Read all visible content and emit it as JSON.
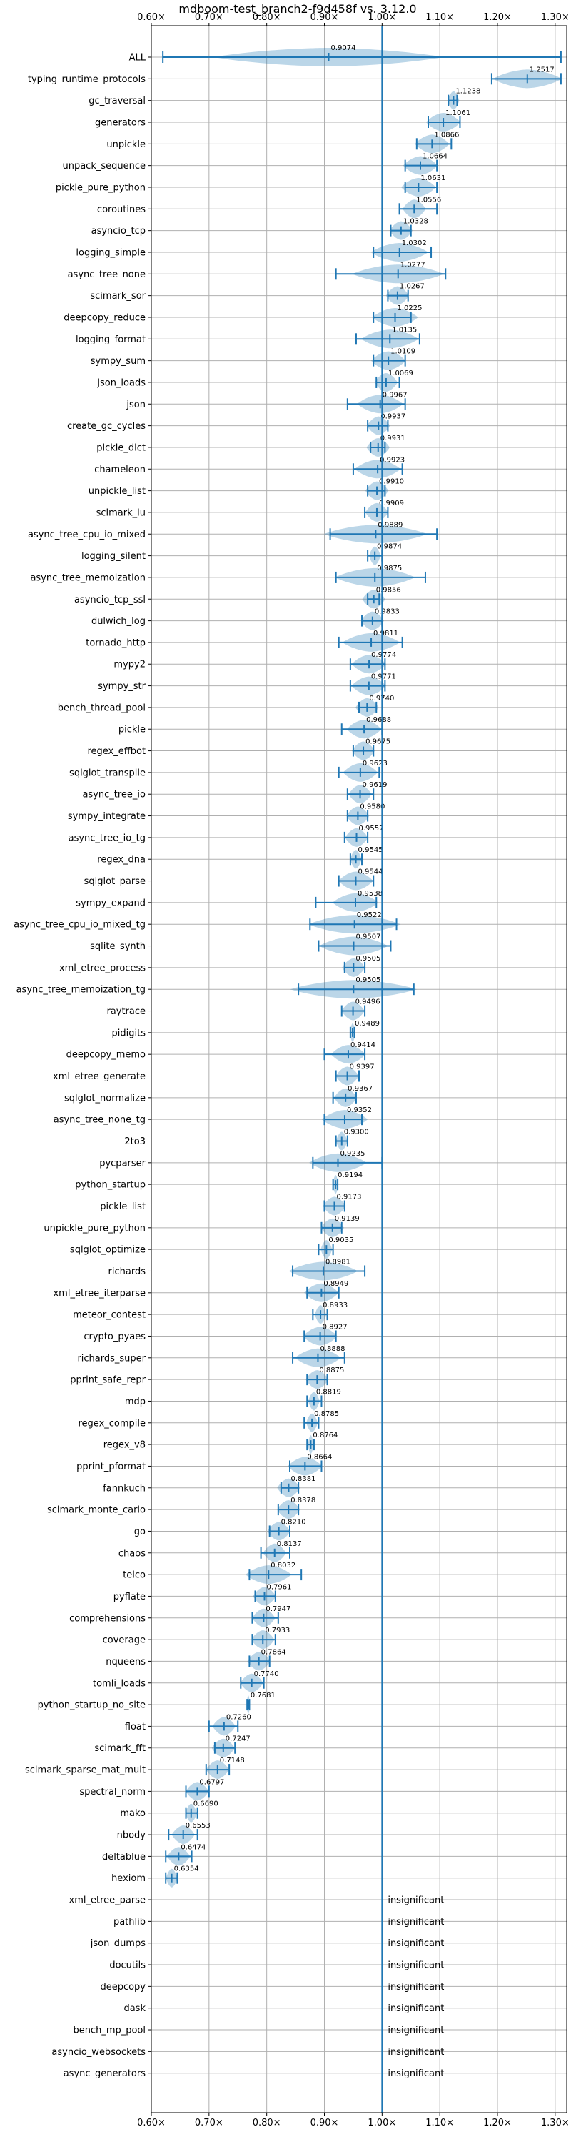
{
  "chart_data": {
    "type": "violin",
    "title": "mdboom-test_branch2-f9d458f vs. 3.12.0",
    "xlim": [
      0.6,
      1.32
    ],
    "grid": "on",
    "reference_x": 1.0,
    "x_ticks": [
      0.6,
      0.7,
      0.8,
      0.9,
      1.0,
      1.1,
      1.2,
      1.3
    ],
    "x_tick_labels": [
      "0.60×",
      "0.70×",
      "0.80×",
      "0.90×",
      "1.00×",
      "1.10×",
      "1.20×",
      "1.30×"
    ],
    "insignificant_text": "insignificant",
    "benchmarks": [
      {
        "name": "ALL",
        "median": 0.9074,
        "label": "0.9074",
        "min": 0.62,
        "max": 1.31,
        "spread": 0.2
      },
      {
        "name": "typing_runtime_protocols",
        "median": 1.2517,
        "label": "1.2517",
        "min": 1.19,
        "max": 1.31,
        "spread": 0.06
      },
      {
        "name": "gc_traversal",
        "median": 1.1238,
        "label": "1.1238",
        "min": 1.115,
        "max": 1.13,
        "spread": 0.01
      },
      {
        "name": "generators",
        "median": 1.1061,
        "label": "1.1061",
        "min": 1.08,
        "max": 1.135,
        "spread": 0.03
      },
      {
        "name": "unpickle",
        "median": 1.0866,
        "label": "1.0866",
        "min": 1.06,
        "max": 1.12,
        "spread": 0.03
      },
      {
        "name": "unpack_sequence",
        "median": 1.0664,
        "label": "1.0664",
        "min": 1.04,
        "max": 1.095,
        "spread": 0.03
      },
      {
        "name": "pickle_pure_python",
        "median": 1.0631,
        "label": "1.0631",
        "min": 1.04,
        "max": 1.095,
        "spread": 0.03
      },
      {
        "name": "coroutines",
        "median": 1.0556,
        "label": "1.0556",
        "min": 1.03,
        "max": 1.095,
        "spread": 0.02
      },
      {
        "name": "asyncio_tcp",
        "median": 1.0328,
        "label": "1.0328",
        "min": 1.015,
        "max": 1.05,
        "spread": 0.02
      },
      {
        "name": "logging_simple",
        "median": 1.0302,
        "label": "1.0302",
        "min": 0.985,
        "max": 1.085,
        "spread": 0.05
      },
      {
        "name": "async_tree_none",
        "median": 1.0277,
        "label": "1.0277",
        "min": 0.92,
        "max": 1.11,
        "spread": 0.08
      },
      {
        "name": "scimark_sor",
        "median": 1.0267,
        "label": "1.0267",
        "min": 1.01,
        "max": 1.045,
        "spread": 0.02
      },
      {
        "name": "deepcopy_reduce",
        "median": 1.0225,
        "label": "1.0225",
        "min": 0.985,
        "max": 1.05,
        "spread": 0.04
      },
      {
        "name": "logging_format",
        "median": 1.0135,
        "label": "1.0135",
        "min": 0.955,
        "max": 1.065,
        "spread": 0.05
      },
      {
        "name": "sympy_sum",
        "median": 1.0109,
        "label": "1.0109",
        "min": 0.985,
        "max": 1.04,
        "spread": 0.03
      },
      {
        "name": "json_loads",
        "median": 1.0069,
        "label": "1.0069",
        "min": 0.99,
        "max": 1.03,
        "spread": 0.02
      },
      {
        "name": "json",
        "median": 0.9967,
        "label": "0.9967",
        "min": 0.94,
        "max": 1.04,
        "spread": 0.04
      },
      {
        "name": "create_gc_cycles",
        "median": 0.9937,
        "label": "0.9937",
        "min": 0.975,
        "max": 1.01,
        "spread": 0.02
      },
      {
        "name": "pickle_dict",
        "median": 0.9931,
        "label": "0.9931",
        "min": 0.98,
        "max": 1.005,
        "spread": 0.02
      },
      {
        "name": "chameleon",
        "median": 0.9923,
        "label": "0.9923",
        "min": 0.95,
        "max": 1.035,
        "spread": 0.04
      },
      {
        "name": "unpickle_list",
        "median": 0.991,
        "label": "0.9910",
        "min": 0.975,
        "max": 1.005,
        "spread": 0.02
      },
      {
        "name": "scimark_lu",
        "median": 0.9909,
        "label": "0.9909",
        "min": 0.97,
        "max": 1.01,
        "spread": 0.02
      },
      {
        "name": "async_tree_cpu_io_mixed",
        "median": 0.9889,
        "label": "0.9889",
        "min": 0.91,
        "max": 1.095,
        "spread": 0.09
      },
      {
        "name": "logging_silent",
        "median": 0.9874,
        "label": "0.9874",
        "min": 0.975,
        "max": 1.0,
        "spread": 0.01
      },
      {
        "name": "async_tree_memoization",
        "median": 0.9875,
        "label": "0.9875",
        "min": 0.92,
        "max": 1.075,
        "spread": 0.07
      },
      {
        "name": "asyncio_tcp_ssl",
        "median": 0.9856,
        "label": "0.9856",
        "min": 0.975,
        "max": 0.995,
        "spread": 0.02
      },
      {
        "name": "dulwich_log",
        "median": 0.9833,
        "label": "0.9833",
        "min": 0.965,
        "max": 1.0,
        "spread": 0.02
      },
      {
        "name": "tornado_http",
        "median": 0.9811,
        "label": "0.9811",
        "min": 0.925,
        "max": 1.035,
        "spread": 0.05
      },
      {
        "name": "mypy2",
        "median": 0.9774,
        "label": "0.9774",
        "min": 0.945,
        "max": 1.005,
        "spread": 0.03
      },
      {
        "name": "sympy_str",
        "median": 0.9771,
        "label": "0.9771",
        "min": 0.945,
        "max": 1.005,
        "spread": 0.03
      },
      {
        "name": "bench_thread_pool",
        "median": 0.974,
        "label": "0.9740",
        "min": 0.96,
        "max": 0.99,
        "spread": 0.02
      },
      {
        "name": "pickle",
        "median": 0.9688,
        "label": "0.9688",
        "min": 0.93,
        "max": 1.0,
        "spread": 0.03
      },
      {
        "name": "regex_effbot",
        "median": 0.9675,
        "label": "0.9675",
        "min": 0.95,
        "max": 0.985,
        "spread": 0.02
      },
      {
        "name": "sqlglot_transpile",
        "median": 0.9623,
        "label": "0.9623",
        "min": 0.925,
        "max": 0.995,
        "spread": 0.03
      },
      {
        "name": "async_tree_io",
        "median": 0.9619,
        "label": "0.9619",
        "min": 0.94,
        "max": 0.985,
        "spread": 0.02
      },
      {
        "name": "sympy_integrate",
        "median": 0.958,
        "label": "0.9580",
        "min": 0.94,
        "max": 0.975,
        "spread": 0.02
      },
      {
        "name": "async_tree_io_tg",
        "median": 0.9557,
        "label": "0.9557",
        "min": 0.935,
        "max": 0.975,
        "spread": 0.02
      },
      {
        "name": "regex_dna",
        "median": 0.9545,
        "label": "0.9545",
        "min": 0.945,
        "max": 0.965,
        "spread": 0.01
      },
      {
        "name": "sqlglot_parse",
        "median": 0.9544,
        "label": "0.9544",
        "min": 0.925,
        "max": 0.985,
        "spread": 0.03
      },
      {
        "name": "sympy_expand",
        "median": 0.9538,
        "label": "0.9538",
        "min": 0.885,
        "max": 0.99,
        "spread": 0.04
      },
      {
        "name": "async_tree_cpu_io_mixed_tg",
        "median": 0.9522,
        "label": "0.9522",
        "min": 0.875,
        "max": 1.025,
        "spread": 0.08
      },
      {
        "name": "sqlite_synth",
        "median": 0.9507,
        "label": "0.9507",
        "min": 0.89,
        "max": 1.015,
        "spread": 0.06
      },
      {
        "name": "xml_etree_process",
        "median": 0.9505,
        "label": "0.9505",
        "min": 0.935,
        "max": 0.97,
        "spread": 0.02
      },
      {
        "name": "async_tree_memoization_tg",
        "median": 0.9505,
        "label": "0.9505",
        "min": 0.855,
        "max": 1.055,
        "spread": 0.11
      },
      {
        "name": "raytrace",
        "median": 0.9496,
        "label": "0.9496",
        "min": 0.93,
        "max": 0.97,
        "spread": 0.02
      },
      {
        "name": "pidigits",
        "median": 0.9489,
        "label": "0.9489",
        "min": 0.945,
        "max": 0.952,
        "spread": 0.005
      },
      {
        "name": "deepcopy_memo",
        "median": 0.9414,
        "label": "0.9414",
        "min": 0.9,
        "max": 0.97,
        "spread": 0.03
      },
      {
        "name": "xml_etree_generate",
        "median": 0.9397,
        "label": "0.9397",
        "min": 0.92,
        "max": 0.96,
        "spread": 0.02
      },
      {
        "name": "sqlglot_normalize",
        "median": 0.9367,
        "label": "0.9367",
        "min": 0.915,
        "max": 0.955,
        "spread": 0.02
      },
      {
        "name": "async_tree_none_tg",
        "median": 0.9352,
        "label": "0.9352",
        "min": 0.9,
        "max": 0.965,
        "spread": 0.04
      },
      {
        "name": "2to3",
        "median": 0.93,
        "label": "0.9300",
        "min": 0.92,
        "max": 0.94,
        "spread": 0.01
      },
      {
        "name": "pycparser",
        "median": 0.9235,
        "label": "0.9235",
        "min": 0.88,
        "max": 1.0,
        "spread": 0.05
      },
      {
        "name": "python_startup",
        "median": 0.9194,
        "label": "0.9194",
        "min": 0.915,
        "max": 0.923,
        "spread": 0.005
      },
      {
        "name": "pickle_list",
        "median": 0.9173,
        "label": "0.9173",
        "min": 0.9,
        "max": 0.935,
        "spread": 0.02
      },
      {
        "name": "unpickle_pure_python",
        "median": 0.9139,
        "label": "0.9139",
        "min": 0.895,
        "max": 0.93,
        "spread": 0.02
      },
      {
        "name": "sqlglot_optimize",
        "median": 0.9035,
        "label": "0.9035",
        "min": 0.89,
        "max": 0.915,
        "spread": 0.01
      },
      {
        "name": "richards",
        "median": 0.8981,
        "label": "0.8981",
        "min": 0.845,
        "max": 0.97,
        "spread": 0.06
      },
      {
        "name": "xml_etree_iterparse",
        "median": 0.8949,
        "label": "0.8949",
        "min": 0.87,
        "max": 0.925,
        "spread": 0.03
      },
      {
        "name": "meteor_contest",
        "median": 0.8933,
        "label": "0.8933",
        "min": 0.88,
        "max": 0.905,
        "spread": 0.01
      },
      {
        "name": "crypto_pyaes",
        "median": 0.8927,
        "label": "0.8927",
        "min": 0.865,
        "max": 0.92,
        "spread": 0.03
      },
      {
        "name": "richards_super",
        "median": 0.8888,
        "label": "0.8888",
        "min": 0.845,
        "max": 0.935,
        "spread": 0.04
      },
      {
        "name": "pprint_safe_repr",
        "median": 0.8875,
        "label": "0.8875",
        "min": 0.87,
        "max": 0.905,
        "spread": 0.02
      },
      {
        "name": "mdp",
        "median": 0.8819,
        "label": "0.8819",
        "min": 0.87,
        "max": 0.895,
        "spread": 0.01
      },
      {
        "name": "regex_compile",
        "median": 0.8785,
        "label": "0.8785",
        "min": 0.865,
        "max": 0.89,
        "spread": 0.01
      },
      {
        "name": "regex_v8",
        "median": 0.8764,
        "label": "0.8764",
        "min": 0.87,
        "max": 0.882,
        "spread": 0.005
      },
      {
        "name": "pprint_pformat",
        "median": 0.8664,
        "label": "0.8664",
        "min": 0.84,
        "max": 0.895,
        "spread": 0.03
      },
      {
        "name": "fannkuch",
        "median": 0.8381,
        "label": "0.8381",
        "min": 0.825,
        "max": 0.855,
        "spread": 0.02
      },
      {
        "name": "scimark_monte_carlo",
        "median": 0.8378,
        "label": "0.8378",
        "min": 0.82,
        "max": 0.855,
        "spread": 0.02
      },
      {
        "name": "go",
        "median": 0.821,
        "label": "0.8210",
        "min": 0.805,
        "max": 0.84,
        "spread": 0.02
      },
      {
        "name": "chaos",
        "median": 0.8137,
        "label": "0.8137",
        "min": 0.79,
        "max": 0.84,
        "spread": 0.02
      },
      {
        "name": "telco",
        "median": 0.8032,
        "label": "0.8032",
        "min": 0.77,
        "max": 0.86,
        "spread": 0.04
      },
      {
        "name": "pyflate",
        "median": 0.7961,
        "label": "0.7961",
        "min": 0.78,
        "max": 0.815,
        "spread": 0.02
      },
      {
        "name": "comprehensions",
        "median": 0.7947,
        "label": "0.7947",
        "min": 0.775,
        "max": 0.82,
        "spread": 0.02
      },
      {
        "name": "coverage",
        "median": 0.7933,
        "label": "0.7933",
        "min": 0.775,
        "max": 0.815,
        "spread": 0.02
      },
      {
        "name": "nqueens",
        "median": 0.7864,
        "label": "0.7864",
        "min": 0.77,
        "max": 0.805,
        "spread": 0.02
      },
      {
        "name": "tomli_loads",
        "median": 0.774,
        "label": "0.7740",
        "min": 0.755,
        "max": 0.795,
        "spread": 0.02
      },
      {
        "name": "python_startup_no_site",
        "median": 0.7681,
        "label": "0.7681",
        "min": 0.766,
        "max": 0.77,
        "spread": 0.003
      },
      {
        "name": "float",
        "median": 0.726,
        "label": "0.7260",
        "min": 0.7,
        "max": 0.75,
        "spread": 0.02
      },
      {
        "name": "scimark_fft",
        "median": 0.7247,
        "label": "0.7247",
        "min": 0.71,
        "max": 0.745,
        "spread": 0.02
      },
      {
        "name": "scimark_sparse_mat_mult",
        "median": 0.7148,
        "label": "0.7148",
        "min": 0.695,
        "max": 0.735,
        "spread": 0.02
      },
      {
        "name": "spectral_norm",
        "median": 0.6797,
        "label": "0.6797",
        "min": 0.66,
        "max": 0.7,
        "spread": 0.02
      },
      {
        "name": "mako",
        "median": 0.669,
        "label": "0.6690",
        "min": 0.66,
        "max": 0.68,
        "spread": 0.01
      },
      {
        "name": "nbody",
        "median": 0.6553,
        "label": "0.6553",
        "min": 0.63,
        "max": 0.68,
        "spread": 0.02
      },
      {
        "name": "deltablue",
        "median": 0.6474,
        "label": "0.6474",
        "min": 0.625,
        "max": 0.67,
        "spread": 0.02
      },
      {
        "name": "hexiom",
        "median": 0.6354,
        "label": "0.6354",
        "min": 0.625,
        "max": 0.645,
        "spread": 0.01
      },
      {
        "name": "xml_etree_parse",
        "median": null,
        "label": "insignificant"
      },
      {
        "name": "pathlib",
        "median": null,
        "label": "insignificant"
      },
      {
        "name": "json_dumps",
        "median": null,
        "label": "insignificant"
      },
      {
        "name": "docutils",
        "median": null,
        "label": "insignificant"
      },
      {
        "name": "deepcopy",
        "median": null,
        "label": "insignificant"
      },
      {
        "name": "dask",
        "median": null,
        "label": "insignificant"
      },
      {
        "name": "bench_mp_pool",
        "median": null,
        "label": "insignificant"
      },
      {
        "name": "asyncio_websockets",
        "median": null,
        "label": "insignificant"
      },
      {
        "name": "async_generators",
        "median": null,
        "label": "insignificant"
      }
    ]
  }
}
